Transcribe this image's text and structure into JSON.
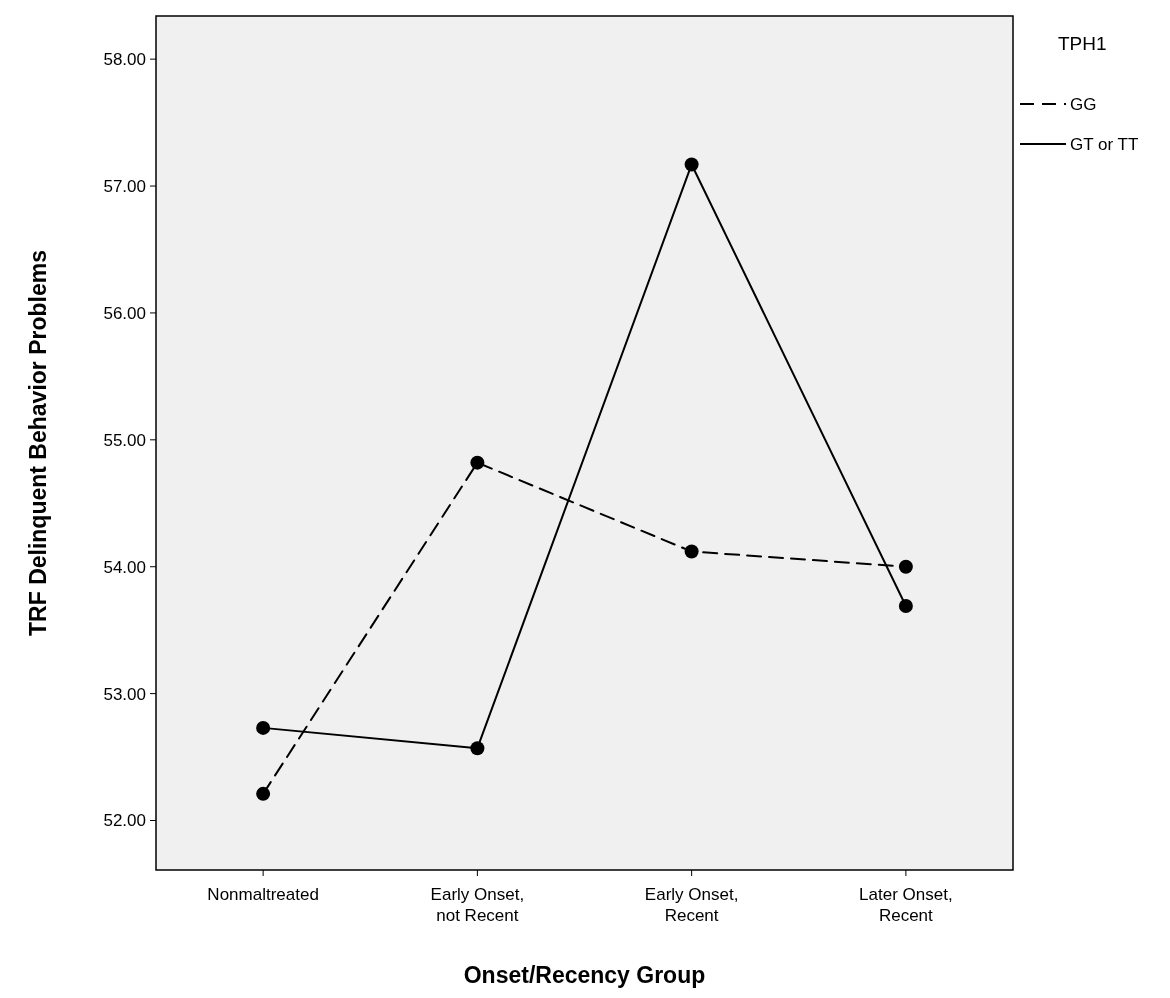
{
  "chart_data": {
    "type": "line",
    "xlabel": "Onset/Recency Group",
    "ylabel": "TRF Delinquent Behavior Problems",
    "legend_title": "TPH1",
    "categories": [
      "Nonmaltreated",
      "Early Onset, not Recent",
      "Early Onset, Recent",
      "Later Onset, Recent"
    ],
    "series": [
      {
        "name": "GG",
        "color": "#000000",
        "line_style": "dashed",
        "values": [
          52.21,
          54.82,
          54.12,
          54.0
        ]
      },
      {
        "name": "GT or TT",
        "color": "#000000",
        "line_style": "solid",
        "values": [
          52.73,
          52.57,
          57.17,
          53.69
        ]
      }
    ],
    "ylim": [
      51.61,
      58.34
    ],
    "yticks": [
      {
        "value": 52,
        "label": "52.00"
      },
      {
        "value": 53,
        "label": "53.00"
      },
      {
        "value": 54,
        "label": "54.00"
      },
      {
        "value": 55,
        "label": "55.00"
      },
      {
        "value": 56,
        "label": "56.00"
      },
      {
        "value": 57,
        "label": "57.00"
      },
      {
        "value": 58,
        "label": "58.00"
      }
    ],
    "grid": false,
    "legend": "top right",
    "marker": "circle"
  }
}
